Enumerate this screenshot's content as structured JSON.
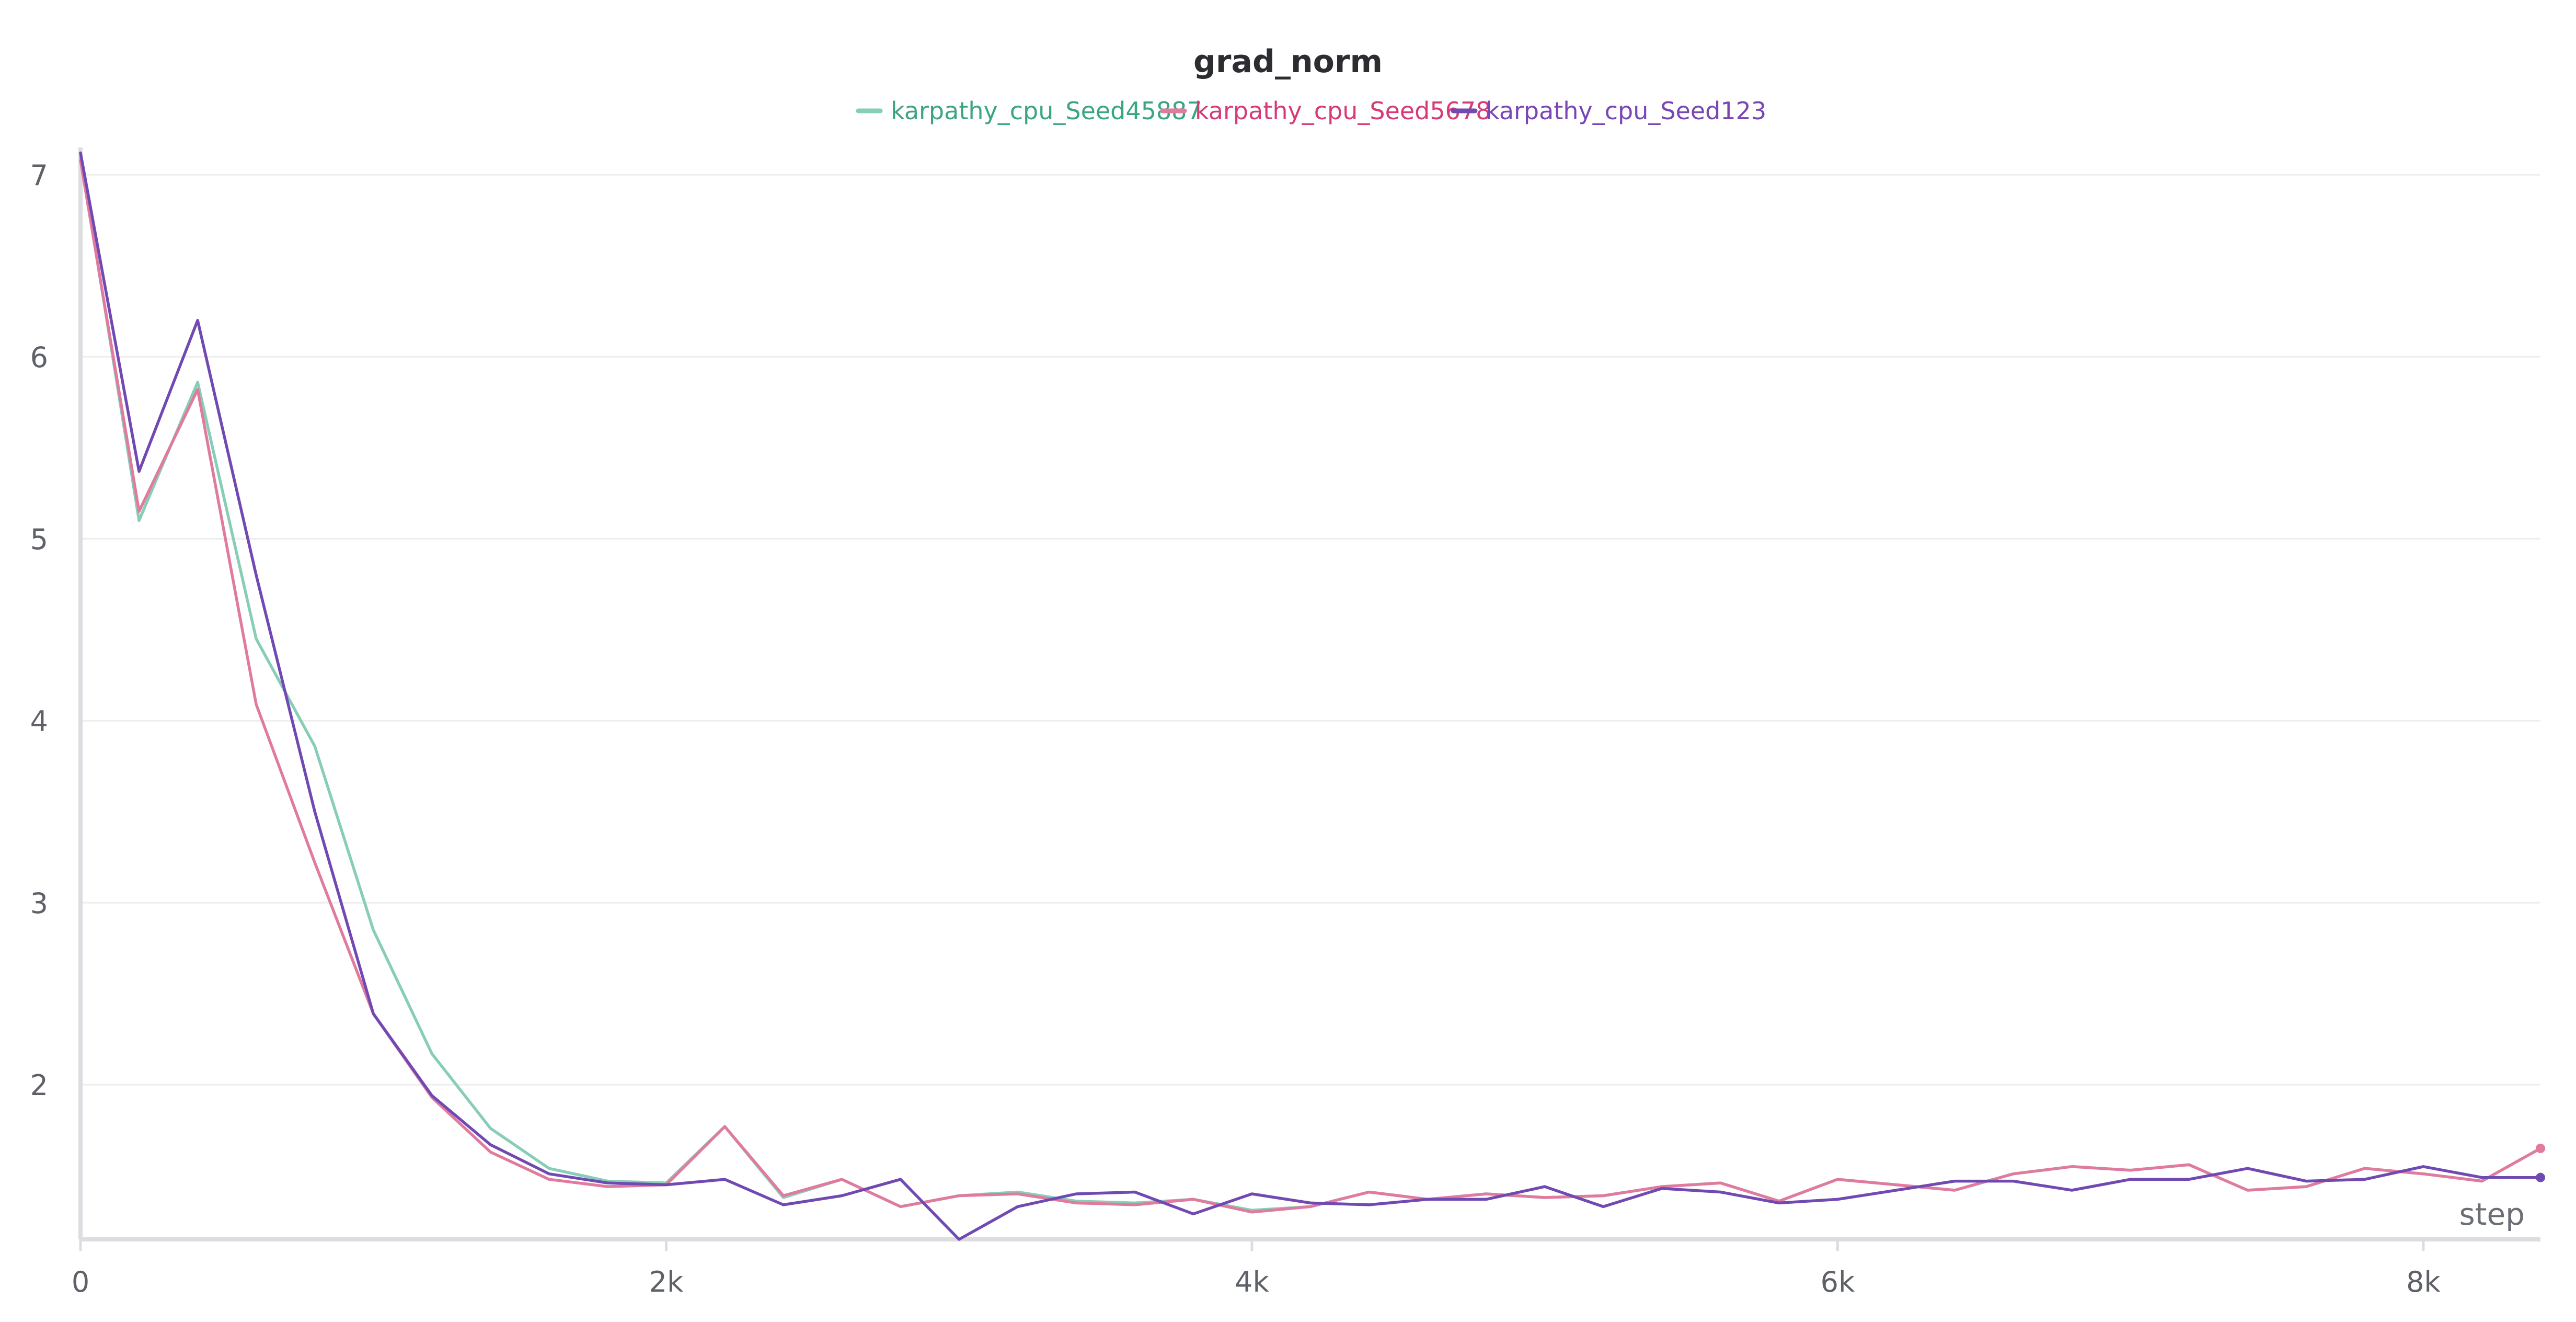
{
  "chart_data": {
    "type": "line",
    "title": "grad_norm",
    "xlabel": "step",
    "ylabel": "",
    "xlim": [
      0,
      8400
    ],
    "ylim": [
      1.15,
      7.15
    ],
    "x_ticks": [
      {
        "value": 0,
        "label": "0"
      },
      {
        "value": 2000,
        "label": "2k"
      },
      {
        "value": 4000,
        "label": "4k"
      },
      {
        "value": 6000,
        "label": "6k"
      },
      {
        "value": 8000,
        "label": "8k"
      }
    ],
    "y_ticks": [
      {
        "value": 2,
        "label": "2"
      },
      {
        "value": 3,
        "label": "3"
      },
      {
        "value": 4,
        "label": "4"
      },
      {
        "value": 5,
        "label": "5"
      },
      {
        "value": 6,
        "label": "6"
      },
      {
        "value": 7,
        "label": "7"
      }
    ],
    "grid": true,
    "legend_position": "top-center",
    "x": [
      0,
      200,
      400,
      600,
      800,
      1000,
      1200,
      1400,
      1600,
      1800,
      2000,
      2200,
      2400,
      2600,
      2800,
      3000,
      3200,
      3400,
      3600,
      3800,
      4000,
      4200,
      4400,
      4600,
      4800,
      5000,
      5200,
      5400,
      5600,
      5800,
      6000,
      6200,
      6400,
      6600,
      6800,
      7000,
      7200,
      7400,
      7600,
      7800,
      8000,
      8200,
      8400
    ],
    "series": [
      {
        "name": "karpathy_cpu_Seed45887",
        "color": "#87cdb7",
        "legend_text_color": "#3ba583",
        "values": [
          7.1,
          5.1,
          5.86,
          4.45,
          3.86,
          2.85,
          2.17,
          1.76,
          1.54,
          1.47,
          1.46,
          1.77,
          1.38,
          1.48,
          1.33,
          1.39,
          1.41,
          1.36,
          1.35,
          1.37,
          1.31,
          1.33,
          1.41,
          1.37,
          1.4,
          1.38,
          1.39,
          1.44,
          1.46,
          1.36,
          1.48,
          1.45,
          1.42,
          1.51,
          1.55,
          1.53,
          1.56,
          1.42,
          1.44,
          1.54,
          1.51,
          1.47,
          1.65
        ]
      },
      {
        "name": "karpathy_cpu_Seed5678",
        "color": "#e07a9f",
        "legend_text_color": "#d63a77",
        "values": [
          7.08,
          5.15,
          5.82,
          4.09,
          3.22,
          2.39,
          1.93,
          1.63,
          1.48,
          1.44,
          1.45,
          1.77,
          1.39,
          1.48,
          1.33,
          1.39,
          1.4,
          1.35,
          1.34,
          1.37,
          1.3,
          1.33,
          1.41,
          1.37,
          1.4,
          1.38,
          1.39,
          1.44,
          1.46,
          1.36,
          1.48,
          1.45,
          1.42,
          1.51,
          1.55,
          1.53,
          1.56,
          1.42,
          1.44,
          1.54,
          1.51,
          1.47,
          1.65
        ]
      },
      {
        "name": "karpathy_cpu_Seed123",
        "color": "#7049b2",
        "legend_text_color": "#7a45b5",
        "values": [
          7.12,
          5.37,
          6.2,
          4.8,
          3.5,
          2.39,
          1.94,
          1.67,
          1.51,
          1.46,
          1.45,
          1.48,
          1.34,
          1.39,
          1.48,
          1.15,
          1.33,
          1.4,
          1.41,
          1.29,
          1.4,
          1.35,
          1.34,
          1.37,
          1.37,
          1.44,
          1.33,
          1.43,
          1.41,
          1.35,
          1.37,
          1.42,
          1.47,
          1.47,
          1.42,
          1.48,
          1.48,
          1.54,
          1.47,
          1.48,
          1.55,
          1.49,
          1.49
        ]
      }
    ]
  }
}
